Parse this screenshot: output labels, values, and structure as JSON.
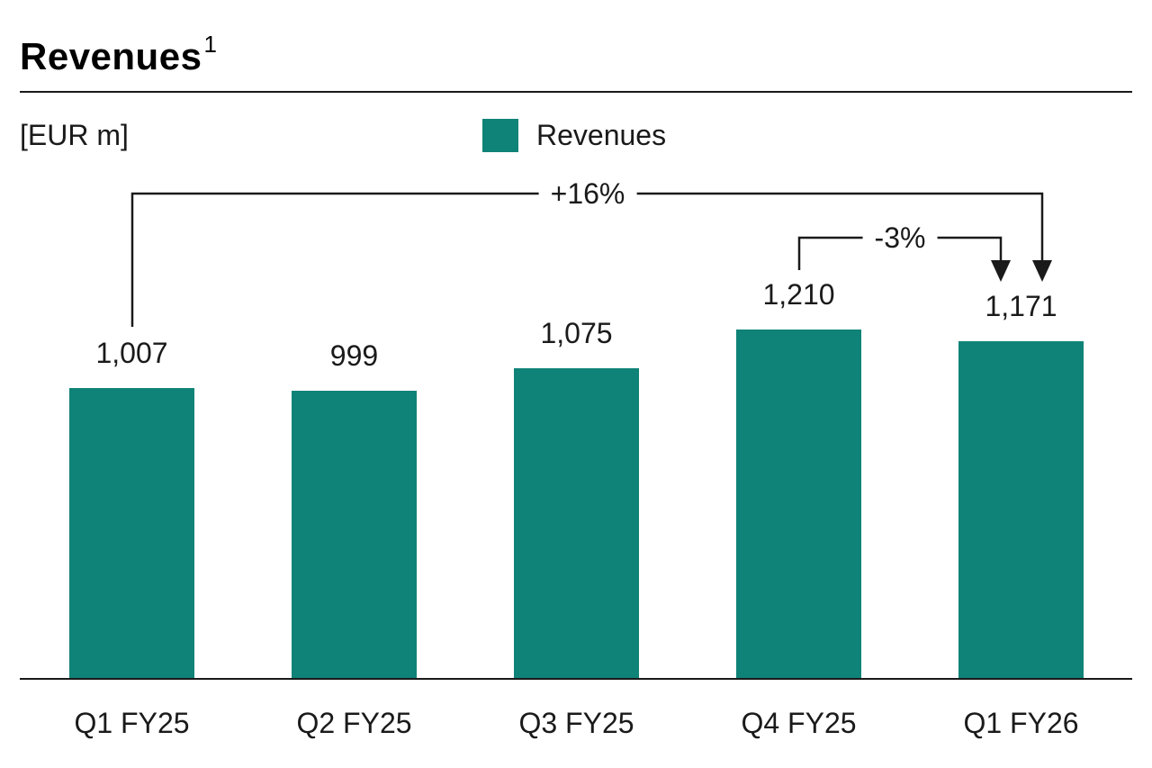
{
  "header": {
    "title": "Revenues",
    "superscript": "1"
  },
  "meta": {
    "unit_label": "[EUR m]",
    "legend": {
      "label": "Revenues",
      "swatch_color": "#0F8377"
    }
  },
  "colors": {
    "bar": "#0F8377",
    "line": "#1a1a1a",
    "text": "#1a1a1a"
  },
  "chart_data": {
    "type": "bar",
    "title": "Revenues",
    "unit": "EUR m",
    "categories": [
      "Q1 FY25",
      "Q2 FY25",
      "Q3 FY25",
      "Q4 FY25",
      "Q1 FY26"
    ],
    "values": [
      1007,
      999,
      1075,
      1210,
      1171
    ],
    "value_labels": [
      "1,007",
      "999",
      "1,075",
      "1,210",
      "1,171"
    ],
    "series_name": "Revenues",
    "bar_color": "#0F8377",
    "ylim": [
      0,
      1260
    ],
    "grid": false,
    "legend_position": "top",
    "annotations": [
      {
        "type": "change-arrow",
        "label": "+16%",
        "from_category": "Q1 FY25",
        "to_category": "Q1 FY26"
      },
      {
        "type": "change-arrow",
        "label": "-3%",
        "from_category": "Q4 FY25",
        "to_category": "Q1 FY26"
      }
    ]
  }
}
